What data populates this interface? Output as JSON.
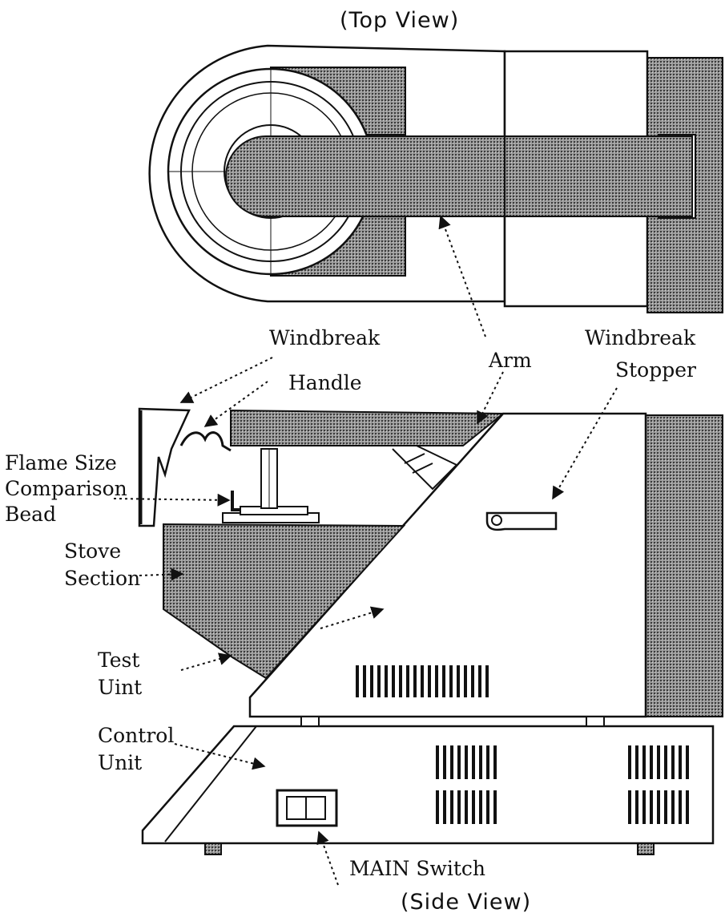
{
  "titles": {
    "top_view": "(Top View)",
    "side_view": "(Side View)"
  },
  "labels": {
    "windbreak": "Windbreak",
    "handle": "Handle",
    "arm": "Arm",
    "windbreak_stopper_1": "Windbreak",
    "windbreak_stopper_2": "Stopper",
    "flame_size_1": "Flame Size",
    "flame_size_2": "Comparison",
    "flame_size_3": "Bead",
    "stove_1": "Stove",
    "stove_2": "Section",
    "test_1": "Test",
    "test_2": "Uint",
    "control_1": "Control",
    "control_2": "Unit",
    "main_switch": "MAIN Switch"
  }
}
